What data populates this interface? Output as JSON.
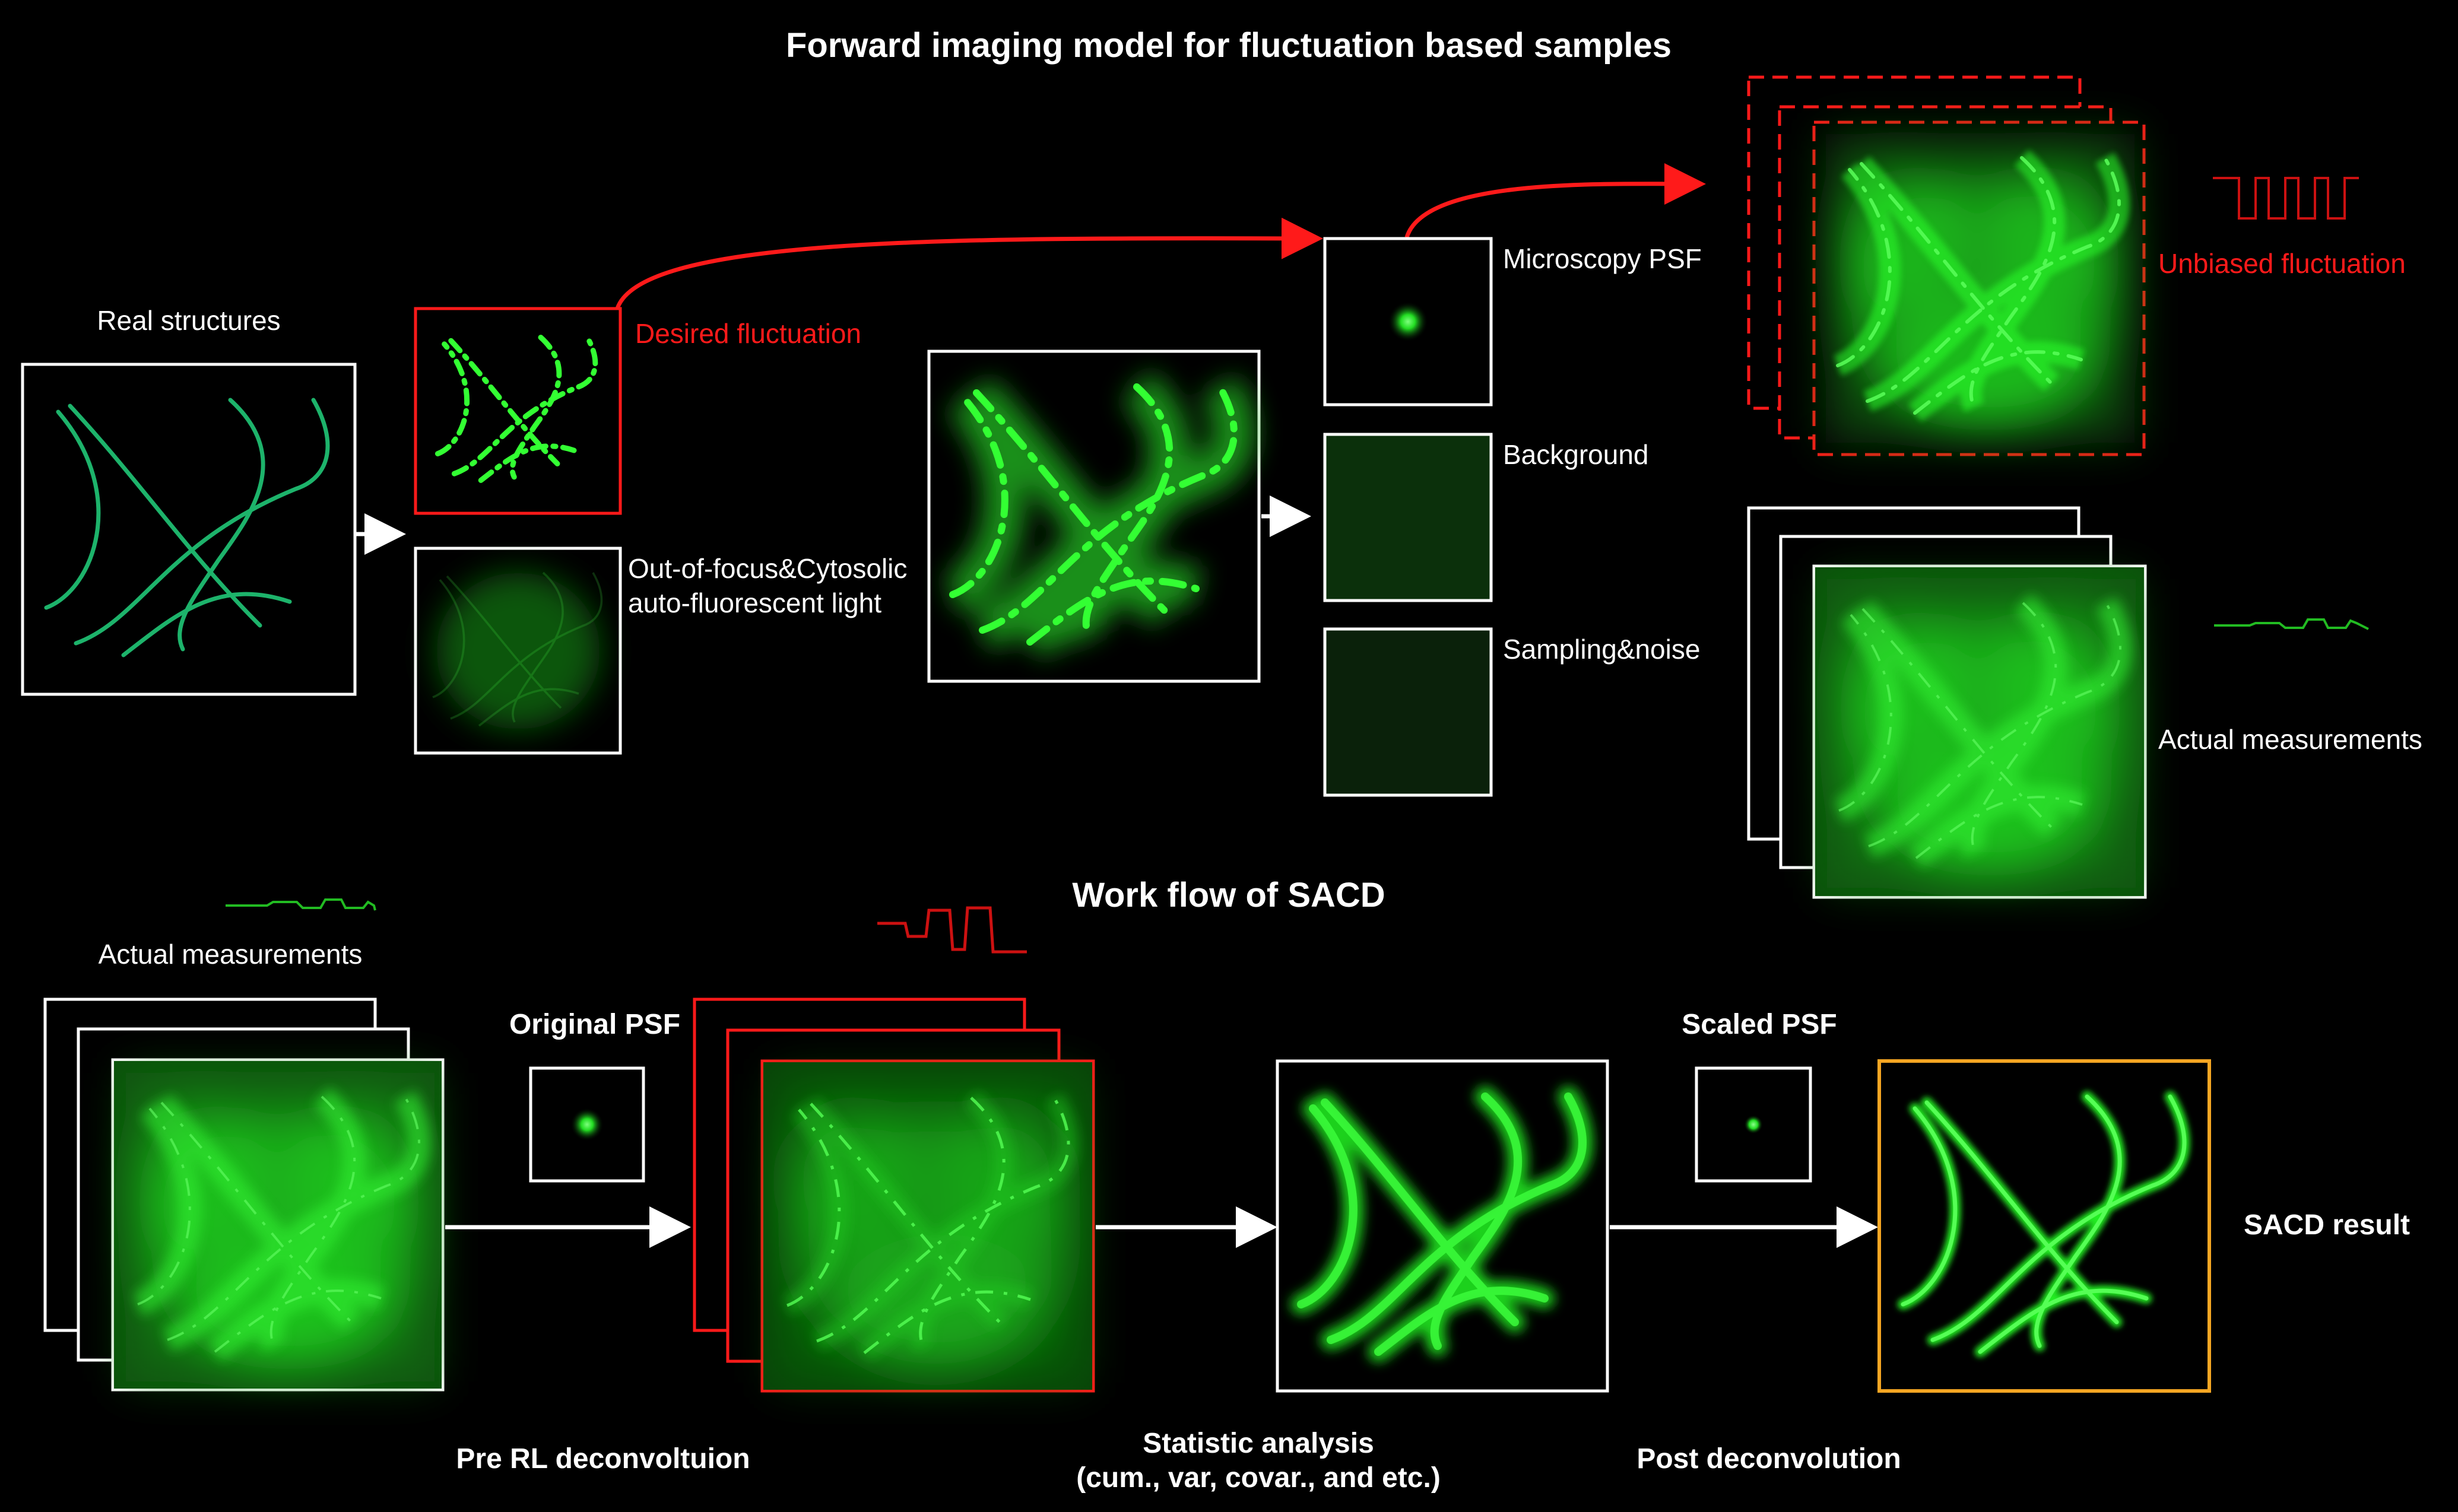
{
  "titles": {
    "forward_model": "Forward imaging model for fluctuation based samples",
    "workflow": "Work flow of SACD"
  },
  "labels": {
    "real_structures": "Real structures",
    "desired_fluctuation": "Desired fluctuation",
    "out_of_focus_line1": "Out-of-focus&Cytosolic",
    "out_of_focus_line2": "auto-fluorescent light",
    "microscopy_psf": "Microscopy PSF",
    "background": "Background",
    "sampling_noise": "Sampling&noise",
    "unbiased_fluctuation": "Unbiased fluctuation",
    "actual_measurements_top": "Actual measurements",
    "actual_measurements_bottom": "Actual measurements",
    "original_psf": "Original PSF",
    "scaled_psf": "Scaled PSF",
    "sacd_result": "SACD result",
    "pre_rl": "Pre RL deconvoltuion",
    "statistic_line1": "Statistic analysis",
    "statistic_line2": "(cum., var, covar., and etc.)",
    "post_deconvolution": "Post deconvolution"
  },
  "colors": {
    "background": "#000000",
    "frame": "#ffffff",
    "red": "#ff1a1a",
    "gold": "#f5a623",
    "filament_real": "#1db36b",
    "filament_bright": "#33ff33",
    "blur_green": "#1fc21f"
  }
}
